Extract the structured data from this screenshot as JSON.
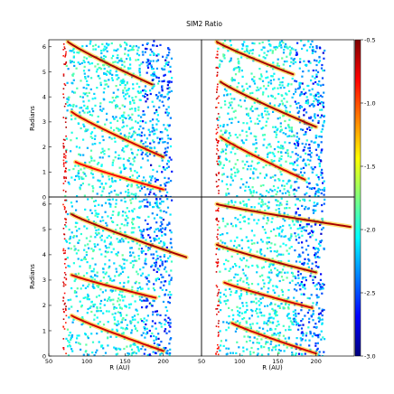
{
  "chart_data": {
    "type": "heatmap",
    "title": "SIM2 Ratio",
    "layout": "2x2 panels",
    "panels": [
      {
        "position": "top-left",
        "ylabel": "Radians",
        "y_ticks": [
          "0",
          "1",
          "2",
          "3",
          "4",
          "5",
          "6"
        ],
        "x_ticks": [],
        "arms": [
          {
            "r_start": 75,
            "r_end": 185,
            "theta_start": 6.2,
            "theta_end": 4.5,
            "value": -0.6
          },
          {
            "r_start": 80,
            "r_end": 200,
            "theta_start": 3.4,
            "theta_end": 1.6,
            "value": -0.7
          },
          {
            "r_start": 85,
            "r_end": 200,
            "theta_start": 1.4,
            "theta_end": 0.3,
            "value": -0.8
          }
        ]
      },
      {
        "position": "top-right",
        "ylabel": "",
        "y_ticks": [],
        "x_ticks": [],
        "arms": [
          {
            "r_start": 70,
            "r_end": 170,
            "theta_start": 6.2,
            "theta_end": 4.9,
            "value": -0.6
          },
          {
            "r_start": 75,
            "r_end": 200,
            "theta_start": 4.6,
            "theta_end": 2.8,
            "value": -0.6
          },
          {
            "r_start": 75,
            "r_end": 185,
            "theta_start": 2.4,
            "theta_end": 0.7,
            "value": -0.7
          }
        ]
      },
      {
        "position": "bottom-left",
        "ylabel": "Radians",
        "y_ticks": [
          "0",
          "1",
          "2",
          "3",
          "4",
          "5",
          "6"
        ],
        "x_ticks": [
          "50",
          "100",
          "150",
          "200"
        ],
        "xlabel": "R (AU)",
        "arms": [
          {
            "r_start": 80,
            "r_end": 230,
            "theta_start": 5.6,
            "theta_end": 3.9,
            "value": -0.6
          },
          {
            "r_start": 80,
            "r_end": 190,
            "theta_start": 3.2,
            "theta_end": 2.3,
            "value": -0.7
          },
          {
            "r_start": 80,
            "r_end": 200,
            "theta_start": 1.6,
            "theta_end": 0.2,
            "value": -0.7
          }
        ]
      },
      {
        "position": "bottom-right",
        "ylabel": "",
        "y_ticks": [],
        "x_ticks": [
          "50",
          "100",
          "150",
          "200"
        ],
        "xlabel": "R (AU)",
        "arms": [
          {
            "r_start": 70,
            "r_end": 245,
            "theta_start": 6.0,
            "theta_end": 5.1,
            "value": -0.6
          },
          {
            "r_start": 70,
            "r_end": 200,
            "theta_start": 4.4,
            "theta_end": 3.3,
            "value": -0.6
          },
          {
            "r_start": 80,
            "r_end": 195,
            "theta_start": 2.9,
            "theta_end": 1.9,
            "value": -0.7
          },
          {
            "r_start": 90,
            "r_end": 200,
            "theta_start": 1.3,
            "theta_end": 0.1,
            "value": -0.7
          }
        ]
      }
    ],
    "xlim": [
      50,
      250
    ],
    "ylim": [
      0,
      6.28
    ],
    "colorbar": {
      "range": [
        -3.0,
        -0.5
      ],
      "ticks": [
        "-0.5",
        "-1.0",
        "-1.5",
        "-2.0",
        "-2.5",
        "-3.0"
      ],
      "colormap": "jet",
      "position": "right"
    },
    "inner_edge_r": 70
  }
}
